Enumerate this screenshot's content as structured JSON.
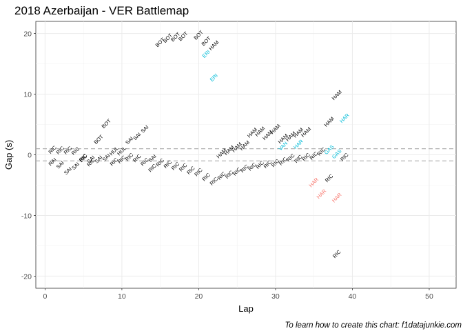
{
  "chart_data": {
    "type": "scatter",
    "title": "2018 Azerbaijan - VER Battlemap",
    "xlabel": "Lap",
    "ylabel": "Gap (s)",
    "caption": "To learn how to create this chart: f1datajunkie.com",
    "xlim": [
      -1.2,
      53.5
    ],
    "ylim": [
      -22,
      22
    ],
    "xticks": [
      0,
      10,
      20,
      30,
      40,
      50
    ],
    "yticks": [
      -20,
      -10,
      0,
      10,
      20
    ],
    "reference_lines": [
      1,
      -1
    ],
    "grid": true,
    "label_rotation_deg": -45,
    "colors": {
      "default": "#000000",
      "ERI": "#00bcd8",
      "VAN": "#00bcd8",
      "GAS": "#00bcd8",
      "HAR_ahead": "#00bcd8",
      "HAR_behind": "#f8766d"
    },
    "points": [
      {
        "x": 1,
        "y": 0.8,
        "label": "RIC",
        "color": "#000000"
      },
      {
        "x": 1,
        "y": -1.2,
        "label": "RAI",
        "color": "#000000"
      },
      {
        "x": 2,
        "y": 0.7,
        "label": "RIC",
        "color": "#000000"
      },
      {
        "x": 2,
        "y": -1.7,
        "label": "SAI",
        "color": "#000000"
      },
      {
        "x": 3,
        "y": 0.7,
        "label": "RIC",
        "color": "#000000"
      },
      {
        "x": 3,
        "y": -2.7,
        "label": "SAI",
        "color": "#000000"
      },
      {
        "x": 4,
        "y": 0.6,
        "label": "RIC",
        "color": "#000000"
      },
      {
        "x": 4,
        "y": -1.9,
        "label": "SAI",
        "color": "#000000"
      },
      {
        "x": 5,
        "y": -0.5,
        "label": "RIC",
        "color": "#000000"
      },
      {
        "x": 5,
        "y": -0.6,
        "label": "BIC",
        "color": "#000000"
      },
      {
        "x": 6,
        "y": -0.8,
        "label": "SAI",
        "color": "#000000"
      },
      {
        "x": 6,
        "y": -1.3,
        "label": "RIC",
        "color": "#000000"
      },
      {
        "x": 7,
        "y": 2.5,
        "label": "BOT",
        "color": "#000000"
      },
      {
        "x": 7,
        "y": -0.8,
        "label": "SAI",
        "color": "#000000"
      },
      {
        "x": 8,
        "y": 5.1,
        "label": "BOT",
        "color": "#000000"
      },
      {
        "x": 8,
        "y": -0.5,
        "label": "SAI",
        "color": "#000000"
      },
      {
        "x": 9,
        "y": 0.6,
        "label": "HUL",
        "color": "#000000"
      },
      {
        "x": 9,
        "y": -1.2,
        "label": "RIC",
        "color": "#000000"
      },
      {
        "x": 10,
        "y": 0.6,
        "label": "HUL",
        "color": "#000000"
      },
      {
        "x": 10,
        "y": -0.8,
        "label": "RIC",
        "color": "#000000"
      },
      {
        "x": 11,
        "y": 2.3,
        "label": "SAI",
        "color": "#000000"
      },
      {
        "x": 11,
        "y": -0.4,
        "label": "RIC",
        "color": "#000000"
      },
      {
        "x": 12,
        "y": 3.0,
        "label": "SAI",
        "color": "#000000"
      },
      {
        "x": 12,
        "y": -0.6,
        "label": "RIC",
        "color": "#000000"
      },
      {
        "x": 13,
        "y": 4.2,
        "label": "SAI",
        "color": "#000000"
      },
      {
        "x": 13,
        "y": -1.2,
        "label": "RIC",
        "color": "#000000"
      },
      {
        "x": 14,
        "y": -0.6,
        "label": "SAI",
        "color": "#000000"
      },
      {
        "x": 14,
        "y": -2.2,
        "label": "RIC",
        "color": "#000000"
      },
      {
        "x": 15,
        "y": 18.5,
        "label": "BOT",
        "color": "#000000"
      },
      {
        "x": 15,
        "y": -1.3,
        "label": "RIC",
        "color": "#000000"
      },
      {
        "x": 16,
        "y": 19.2,
        "label": "BOT",
        "color": "#000000"
      },
      {
        "x": 16,
        "y": -1.6,
        "label": "RIC",
        "color": "#000000"
      },
      {
        "x": 17,
        "y": 19.4,
        "label": "BOT",
        "color": "#000000"
      },
      {
        "x": 17,
        "y": -1.9,
        "label": "RIC",
        "color": "#000000"
      },
      {
        "x": 18,
        "y": 19.5,
        "label": "BOT",
        "color": "#000000"
      },
      {
        "x": 18,
        "y": -2.1,
        "label": "RIC",
        "color": "#000000"
      },
      {
        "x": 19,
        "y": -2.6,
        "label": "RIC",
        "color": "#000000"
      },
      {
        "x": 20,
        "y": 19.7,
        "label": "BOT",
        "color": "#000000"
      },
      {
        "x": 20,
        "y": -2.9,
        "label": "RIC",
        "color": "#000000"
      },
      {
        "x": 21,
        "y": 18.7,
        "label": "BOT",
        "color": "#000000"
      },
      {
        "x": 21,
        "y": 16.6,
        "label": "ERI",
        "color": "#00bcd8"
      },
      {
        "x": 21,
        "y": -3.7,
        "label": "RIC",
        "color": "#000000"
      },
      {
        "x": 22,
        "y": 18.0,
        "label": "HAM",
        "color": "#000000"
      },
      {
        "x": 22,
        "y": 12.7,
        "label": "ERI",
        "color": "#00bcd8"
      },
      {
        "x": 22,
        "y": -4.4,
        "label": "RIC",
        "color": "#000000"
      },
      {
        "x": 23,
        "y": 0.2,
        "label": "HAM",
        "color": "#000000"
      },
      {
        "x": 23,
        "y": -3.5,
        "label": "RIC",
        "color": "#000000"
      },
      {
        "x": 24,
        "y": 0.7,
        "label": "HAM",
        "color": "#000000"
      },
      {
        "x": 24,
        "y": -3.3,
        "label": "RIC",
        "color": "#000000"
      },
      {
        "x": 25,
        "y": 1.2,
        "label": "HAM",
        "color": "#000000"
      },
      {
        "x": 25,
        "y": -2.8,
        "label": "RIC",
        "color": "#000000"
      },
      {
        "x": 26,
        "y": 1.5,
        "label": "HAM",
        "color": "#000000"
      },
      {
        "x": 26,
        "y": -2.3,
        "label": "RIC",
        "color": "#000000"
      },
      {
        "x": 27,
        "y": 3.6,
        "label": "HAM",
        "color": "#000000"
      },
      {
        "x": 27,
        "y": -2.0,
        "label": "RIC",
        "color": "#000000"
      },
      {
        "x": 28,
        "y": 3.8,
        "label": "HAM",
        "color": "#000000"
      },
      {
        "x": 28,
        "y": -1.7,
        "label": "RIC",
        "color": "#000000"
      },
      {
        "x": 29,
        "y": 3.2,
        "label": "HAM",
        "color": "#000000"
      },
      {
        "x": 29,
        "y": -1.6,
        "label": "RIC",
        "color": "#000000"
      },
      {
        "x": 30,
        "y": 4.2,
        "label": "HAM",
        "color": "#000000"
      },
      {
        "x": 30,
        "y": -1.4,
        "label": "RIC",
        "color": "#000000"
      },
      {
        "x": 31,
        "y": 2.6,
        "label": "HAM",
        "color": "#000000"
      },
      {
        "x": 31,
        "y": 1.4,
        "label": "VAN",
        "color": "#00bcd8"
      },
      {
        "x": 31,
        "y": -1.1,
        "label": "RIC",
        "color": "#000000"
      },
      {
        "x": 32,
        "y": 3.0,
        "label": "HAM",
        "color": "#000000"
      },
      {
        "x": 32,
        "y": -0.5,
        "label": "RIC",
        "color": "#000000"
      },
      {
        "x": 33,
        "y": 3.6,
        "label": "HAM",
        "color": "#000000"
      },
      {
        "x": 33,
        "y": 1.7,
        "label": "HAR",
        "color": "#00bcd8"
      },
      {
        "x": 33,
        "y": -0.7,
        "label": "RIC",
        "color": "#000000"
      },
      {
        "x": 34,
        "y": 3.7,
        "label": "HAM",
        "color": "#000000"
      },
      {
        "x": 34,
        "y": -0.4,
        "label": "RIC",
        "color": "#000000"
      },
      {
        "x": 35,
        "y": -0.2,
        "label": "RIC",
        "color": "#000000"
      },
      {
        "x": 35,
        "y": -4.6,
        "label": "HAR",
        "color": "#f8766d"
      },
      {
        "x": 36,
        "y": 0.5,
        "label": "RIC",
        "color": "#000000"
      },
      {
        "x": 36,
        "y": -6.5,
        "label": "HAR",
        "color": "#f8766d"
      },
      {
        "x": 37,
        "y": 0.8,
        "label": "GAS",
        "color": "#00bcd8"
      },
      {
        "x": 37,
        "y": -3.9,
        "label": "RIC",
        "color": "#000000"
      },
      {
        "x": 37,
        "y": 5.4,
        "label": "HAM",
        "color": "#000000"
      },
      {
        "x": 38,
        "y": 0.1,
        "label": "GAS",
        "color": "#00bcd8"
      },
      {
        "x": 38,
        "y": 9.8,
        "label": "HAM",
        "color": "#000000"
      },
      {
        "x": 38,
        "y": -7.1,
        "label": "HAR",
        "color": "#f8766d"
      },
      {
        "x": 38,
        "y": -16.4,
        "label": "RIC",
        "color": "#000000"
      },
      {
        "x": 39,
        "y": 6.0,
        "label": "HAR",
        "color": "#00bcd8"
      },
      {
        "x": 39,
        "y": -0.4,
        "label": "RIC",
        "color": "#000000"
      }
    ]
  }
}
